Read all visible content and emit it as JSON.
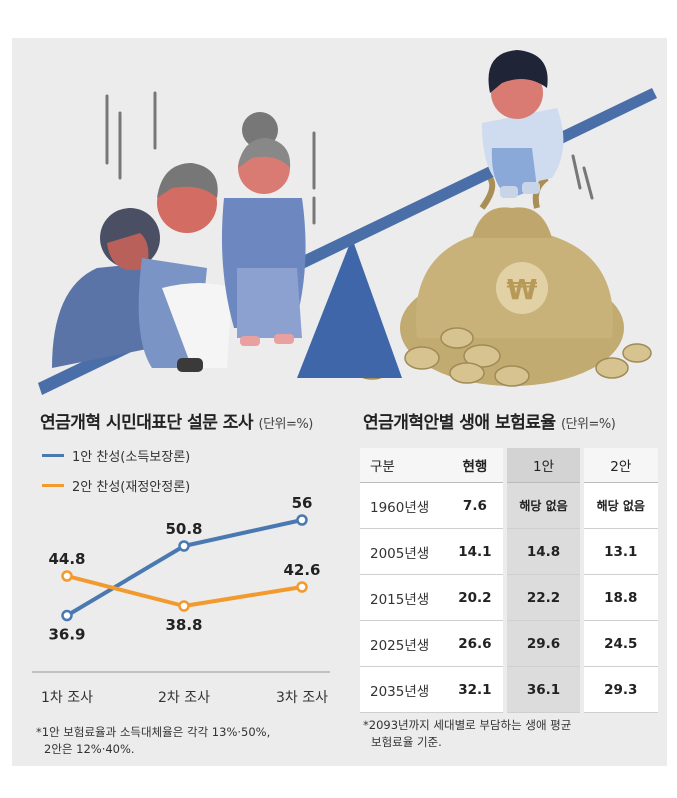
{
  "left_panel": {
    "title": "연금개혁 시민대표단 설문 조사",
    "unit": "(단위=%)",
    "legend": [
      {
        "label": "1안 찬성(소득보장론)",
        "color": "#4a78b0"
      },
      {
        "label": "2안 찬성(재정안정론)",
        "color": "#f29a2e"
      }
    ],
    "footnote_line1": "*1안 보험료율과 소득대체율은 각각 13%·50%,",
    "footnote_line2": "2안은 12%·40%."
  },
  "chart_data": {
    "type": "line",
    "categories": [
      "1차 조사",
      "2차 조사",
      "3차 조사"
    ],
    "series": [
      {
        "name": "1안 찬성(소득보장론)",
        "values": [
          36.9,
          50.8,
          56
        ],
        "labels": [
          "36.9",
          "50.8",
          "56"
        ],
        "color": "#4a78b0"
      },
      {
        "name": "2안 찬성(재정안정론)",
        "values": [
          44.8,
          38.8,
          42.6
        ],
        "labels": [
          "44.8",
          "38.8",
          "42.6"
        ],
        "color": "#f29a2e"
      }
    ],
    "ylim": [
      30,
      60
    ],
    "grid": false
  },
  "right_panel": {
    "title": "연금개혁안별 생애 보험료율",
    "unit": "(단위=%)",
    "table": {
      "headers": [
        "구분",
        "현행",
        "1안",
        "2안"
      ],
      "rows": [
        [
          "1960년생",
          "7.6",
          "해당 없음",
          "해당 없음"
        ],
        [
          "2005년생",
          "14.1",
          "14.8",
          "13.1"
        ],
        [
          "2015년생",
          "20.2",
          "22.2",
          "18.8"
        ],
        [
          "2025년생",
          "26.6",
          "29.6",
          "24.5"
        ],
        [
          "2035년생",
          "32.1",
          "36.1",
          "29.3"
        ]
      ]
    },
    "footnote_line1": "*2093년까지 세대별로 부담하는 생애 평균",
    "footnote_line2": "보험료율 기준."
  },
  "illustration": {
    "coin_symbol": "₩",
    "colors": {
      "seesaw": "#4a6ea8",
      "bag": "#c9b27a",
      "coin": "#d7c390"
    }
  }
}
